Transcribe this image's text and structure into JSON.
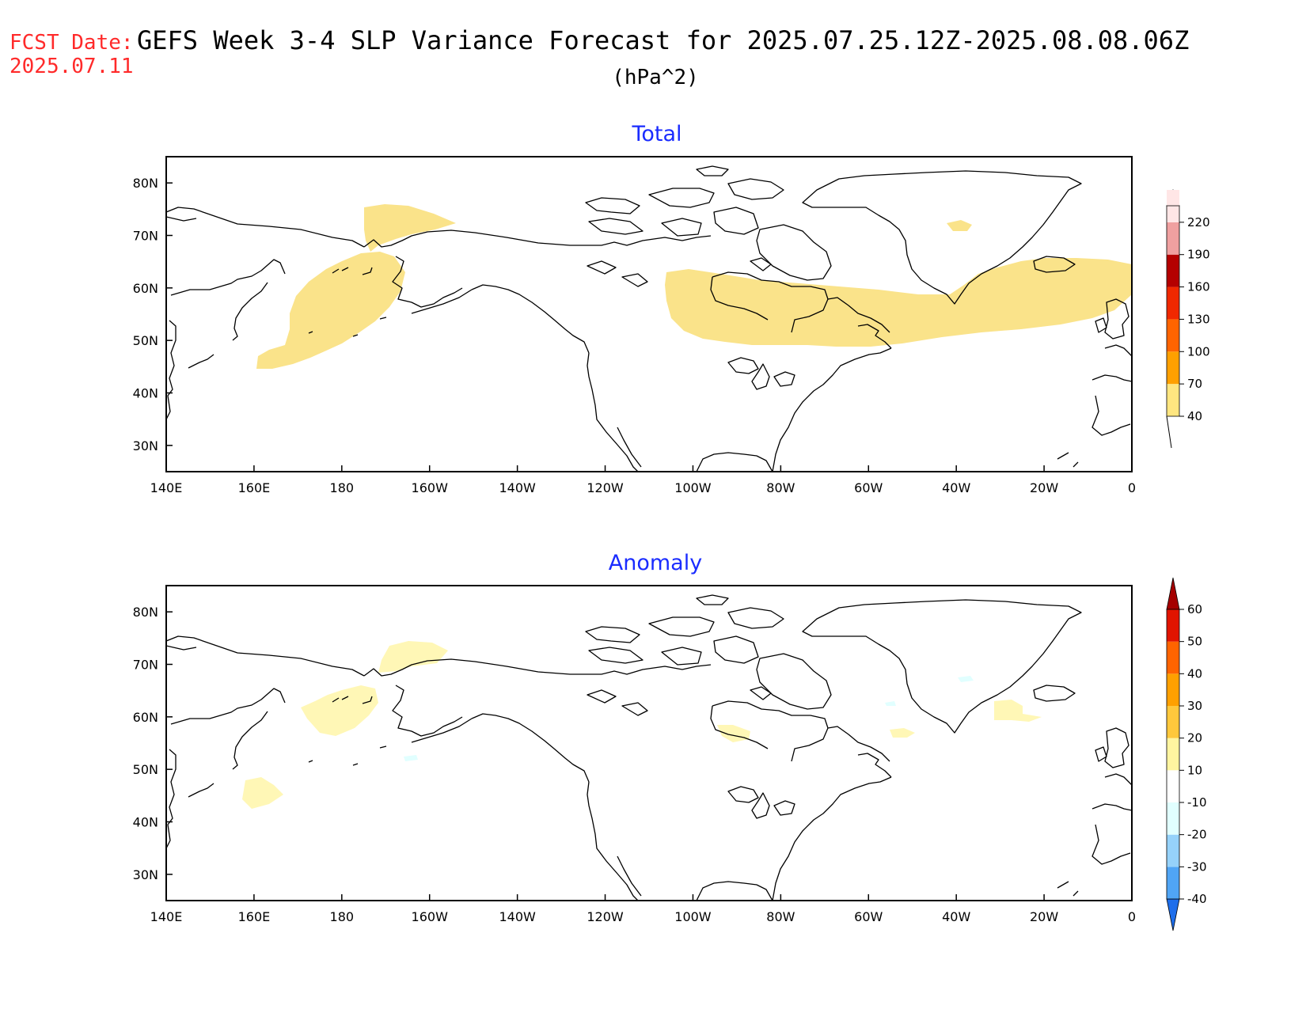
{
  "header": {
    "fcst_label": "FCST Date:",
    "fcst_date": "2025.07.11",
    "title": "GEFS Week 3-4 SLP Variance Forecast for 2025.07.25.12Z-2025.08.08.06Z",
    "units": "(hPa^2)"
  },
  "axes": {
    "lon_labels": [
      "140E",
      "160E",
      "180",
      "160W",
      "140W",
      "120W",
      "100W",
      "80W",
      "60W",
      "40W",
      "20W",
      "0"
    ],
    "lat_labels": [
      "80N",
      "70N",
      "60N",
      "50N",
      "40N",
      "30N"
    ],
    "lon_range": [
      140,
      360
    ],
    "lat_range": [
      25,
      85
    ]
  },
  "panels": [
    {
      "title": "Total",
      "colorbar": {
        "levels": [
          "40",
          "70",
          "100",
          "130",
          "160",
          "190",
          "220"
        ],
        "colors": [
          "#ffe680",
          "#ffa000",
          "#ff6400",
          "#f02800",
          "#b40000",
          "#f0a0a0",
          "#ffe6e6"
        ],
        "low_end": "#ffffff"
      },
      "fill_color": "#fae38a"
    },
    {
      "title": "Anomaly",
      "colorbar": {
        "levels": [
          "-40",
          "-30",
          "-20",
          "-10",
          "10",
          "20",
          "30",
          "40",
          "50",
          "60"
        ],
        "colors": [
          "#1e6eeb",
          "#50a5f5",
          "#96d2fa",
          "#e1ffff",
          "#ffffff",
          "#fff5a0",
          "#ffc83c",
          "#ffa000",
          "#ff6400",
          "#e11400",
          "#a50000"
        ],
        "low_end": "#1e3cff"
      },
      "fill_color": "#fff7b6",
      "neg_color": "#e1ffff"
    }
  ],
  "colors": {
    "fcst_red": "#ff2a2a",
    "panel_title_blue": "#1a2cff"
  }
}
